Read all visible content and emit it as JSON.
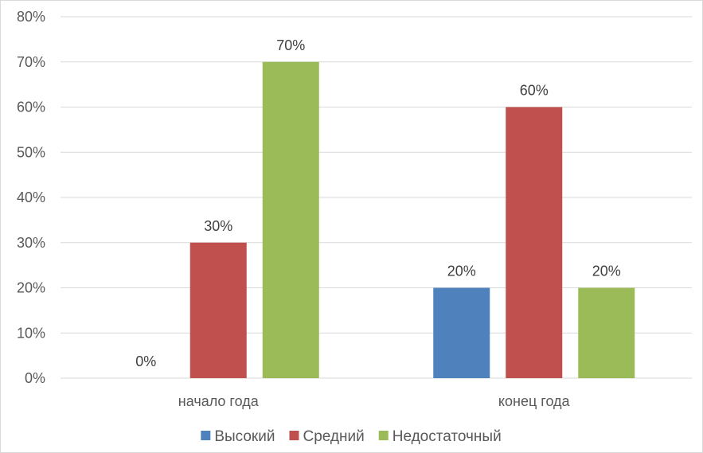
{
  "chart_data": {
    "type": "bar",
    "categories": [
      "начало года",
      "конец года"
    ],
    "series": [
      {
        "name": "Высокий",
        "values": [
          0,
          20
        ],
        "color": "#4F81BD",
        "labels": [
          "0%",
          "20%"
        ]
      },
      {
        "name": "Средний",
        "values": [
          30,
          60
        ],
        "color": "#C0504D",
        "labels": [
          "30%",
          "60%"
        ]
      },
      {
        "name": "Недостаточный",
        "values": [
          70,
          20
        ],
        "color": "#9BBB59",
        "labels": [
          "70%",
          "20%"
        ]
      }
    ],
    "ylim": [
      0,
      80
    ],
    "yticks": [
      "0%",
      "10%",
      "20%",
      "30%",
      "40%",
      "50%",
      "60%",
      "70%",
      "80%"
    ],
    "grid": true,
    "legend_position": "bottom",
    "title": "",
    "xlabel": "",
    "ylabel": ""
  }
}
